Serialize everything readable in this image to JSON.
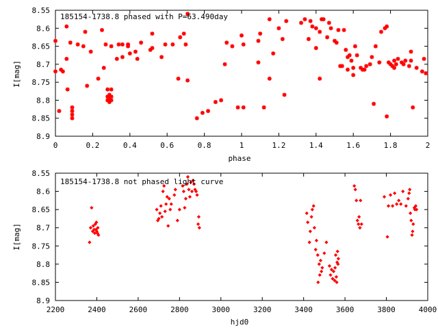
{
  "chart_data": [
    {
      "type": "scatter",
      "title": "185154-1738.8 phased with P=63.490day",
      "xlabel": "phase",
      "ylabel": "I[mag]",
      "xlim": [
        0,
        2
      ],
      "ylim": [
        8.9,
        8.55
      ],
      "y_inverted": true,
      "x_ticks": [
        "0",
        "0.2",
        "0.4",
        "0.6",
        "0.8",
        "1",
        "1.2",
        "1.4",
        "1.6",
        "1.8",
        "2"
      ],
      "y_ticks": [
        "8.55",
        "8.6",
        "8.65",
        "8.7",
        "8.75",
        "8.8",
        "8.85",
        "8.9"
      ],
      "marker": "star",
      "color": "#ff0000",
      "series": [
        {
          "points": [
            [
              0.0,
              8.635
            ],
            [
              0.0,
              8.72
            ],
            [
              0.02,
              8.83
            ],
            [
              0.03,
              8.715
            ],
            [
              0.04,
              8.72
            ],
            [
              0.06,
              8.595
            ],
            [
              0.06,
              8.685
            ],
            [
              0.065,
              8.77
            ],
            [
              0.08,
              8.64
            ],
            [
              0.09,
              8.82
            ],
            [
              0.09,
              8.83
            ],
            [
              0.09,
              8.84
            ],
            [
              0.09,
              8.85
            ],
            [
              0.12,
              8.645
            ],
            [
              0.15,
              8.65
            ],
            [
              0.16,
              8.61
            ],
            [
              0.17,
              8.76
            ],
            [
              0.19,
              8.665
            ],
            [
              0.23,
              8.74
            ],
            [
              0.25,
              8.605
            ],
            [
              0.26,
              8.71
            ],
            [
              0.27,
              8.645
            ],
            [
              0.28,
              8.77
            ],
            [
              0.28,
              8.79
            ],
            [
              0.28,
              8.8
            ],
            [
              0.29,
              8.785
            ],
            [
              0.29,
              8.795
            ],
            [
              0.29,
              8.805
            ],
            [
              0.3,
              8.77
            ],
            [
              0.3,
              8.79
            ],
            [
              0.3,
              8.8
            ],
            [
              0.3,
              8.65
            ],
            [
              0.33,
              8.685
            ],
            [
              0.34,
              8.645
            ],
            [
              0.36,
              8.68
            ],
            [
              0.36,
              8.645
            ],
            [
              0.39,
              8.645
            ],
            [
              0.39,
              8.65
            ],
            [
              0.4,
              8.67
            ],
            [
              0.43,
              8.665
            ],
            [
              0.44,
              8.685
            ],
            [
              0.46,
              8.64
            ],
            [
              0.51,
              8.66
            ],
            [
              0.52,
              8.655
            ],
            [
              0.52,
              8.615
            ],
            [
              0.57,
              8.68
            ],
            [
              0.59,
              8.645
            ],
            [
              0.63,
              8.645
            ],
            [
              0.66,
              8.74
            ],
            [
              0.67,
              8.625
            ],
            [
              0.69,
              8.615
            ],
            [
              0.7,
              8.645
            ],
            [
              0.71,
              8.745
            ],
            [
              0.71,
              8.56
            ],
            [
              0.76,
              8.85
            ],
            [
              0.79,
              8.835
            ],
            [
              0.82,
              8.83
            ],
            [
              0.86,
              8.805
            ],
            [
              0.89,
              8.8
            ],
            [
              0.91,
              8.7
            ],
            [
              0.92,
              8.64
            ],
            [
              0.95,
              8.65
            ],
            [
              0.98,
              8.82
            ],
            [
              1.0,
              8.62
            ],
            [
              1.01,
              8.82
            ],
            [
              1.01,
              8.645
            ],
            [
              1.09,
              8.695
            ],
            [
              1.09,
              8.635
            ],
            [
              1.1,
              8.615
            ],
            [
              1.12,
              8.82
            ],
            [
              1.15,
              8.575
            ],
            [
              1.15,
              8.74
            ],
            [
              1.17,
              8.67
            ],
            [
              1.2,
              8.6
            ],
            [
              1.22,
              8.63
            ],
            [
              1.23,
              8.785
            ],
            [
              1.24,
              8.58
            ],
            [
              1.32,
              8.585
            ],
            [
              1.34,
              8.575
            ],
            [
              1.36,
              8.63
            ],
            [
              1.37,
              8.58
            ],
            [
              1.38,
              8.595
            ],
            [
              1.4,
              8.655
            ],
            [
              1.4,
              8.6
            ],
            [
              1.42,
              8.74
            ],
            [
              1.42,
              8.61
            ],
            [
              1.43,
              8.575
            ],
            [
              1.44,
              8.575
            ],
            [
              1.46,
              8.625
            ],
            [
              1.47,
              8.585
            ],
            [
              1.48,
              8.6
            ],
            [
              1.5,
              8.635
            ],
            [
              1.51,
              8.64
            ],
            [
              1.52,
              8.605
            ],
            [
              1.53,
              8.705
            ],
            [
              1.54,
              8.705
            ],
            [
              1.55,
              8.605
            ],
            [
              1.56,
              8.66
            ],
            [
              1.57,
              8.715
            ],
            [
              1.57,
              8.68
            ],
            [
              1.58,
              8.675
            ],
            [
              1.59,
              8.69
            ],
            [
              1.6,
              8.71
            ],
            [
              1.6,
              8.73
            ],
            [
              1.61,
              8.65
            ],
            [
              1.62,
              8.675
            ],
            [
              1.64,
              8.71
            ],
            [
              1.65,
              8.715
            ],
            [
              1.66,
              8.715
            ],
            [
              1.67,
              8.705
            ],
            [
              1.69,
              8.7
            ],
            [
              1.7,
              8.68
            ],
            [
              1.71,
              8.81
            ],
            [
              1.72,
              8.65
            ],
            [
              1.74,
              8.695
            ],
            [
              1.75,
              8.61
            ],
            [
              1.77,
              8.6
            ],
            [
              1.78,
              8.595
            ],
            [
              1.78,
              8.845
            ],
            [
              1.79,
              8.695
            ],
            [
              1.8,
              8.7
            ],
            [
              1.81,
              8.705
            ],
            [
              1.82,
              8.71
            ],
            [
              1.82,
              8.69
            ],
            [
              1.83,
              8.7
            ],
            [
              1.84,
              8.685
            ],
            [
              1.86,
              8.695
            ],
            [
              1.87,
              8.7
            ],
            [
              1.88,
              8.69
            ],
            [
              1.9,
              8.705
            ],
            [
              1.91,
              8.665
            ],
            [
              1.91,
              8.69
            ],
            [
              1.92,
              8.82
            ],
            [
              1.94,
              8.71
            ],
            [
              1.97,
              8.72
            ],
            [
              1.98,
              8.685
            ],
            [
              1.99,
              8.725
            ]
          ]
        }
      ]
    },
    {
      "type": "scatter",
      "title": "185154-1738.8 not phased light curve",
      "xlabel": "hjd0",
      "ylabel": "I[mag]",
      "xlim": [
        2200,
        4000
      ],
      "ylim": [
        8.9,
        8.55
      ],
      "y_inverted": true,
      "x_ticks": [
        "2200",
        "2400",
        "2600",
        "2800",
        "3000",
        "3200",
        "3400",
        "3600",
        "3800",
        "4000"
      ],
      "y_ticks": [
        "8.55",
        "8.6",
        "8.65",
        "8.7",
        "8.75",
        "8.8",
        "8.85",
        "8.9"
      ],
      "marker": "diamond",
      "color": "#ff0000",
      "series": [
        {
          "points": [
            [
              2365,
              8.74
            ],
            [
              2370,
              8.7
            ],
            [
              2375,
              8.645
            ],
            [
              2380,
              8.71
            ],
            [
              2383,
              8.695
            ],
            [
              2387,
              8.705
            ],
            [
              2390,
              8.715
            ],
            [
              2393,
              8.69
            ],
            [
              2396,
              8.705
            ],
            [
              2398,
              8.685
            ],
            [
              2400,
              8.71
            ],
            [
              2403,
              8.715
            ],
            [
              2405,
              8.7
            ],
            [
              2408,
              8.72
            ],
            [
              2690,
              8.65
            ],
            [
              2695,
              8.68
            ],
            [
              2700,
              8.675
            ],
            [
              2705,
              8.66
            ],
            [
              2710,
              8.64
            ],
            [
              2715,
              8.67
            ],
            [
              2720,
              8.6
            ],
            [
              2725,
              8.585
            ],
            [
              2730,
              8.655
            ],
            [
              2735,
              8.635
            ],
            [
              2740,
              8.615
            ],
            [
              2745,
              8.695
            ],
            [
              2750,
              8.62
            ],
            [
              2755,
              8.65
            ],
            [
              2760,
              8.635
            ],
            [
              2775,
              8.61
            ],
            [
              2780,
              8.595
            ],
            [
              2790,
              8.68
            ],
            [
              2800,
              8.65
            ],
            [
              2815,
              8.585
            ],
            [
              2820,
              8.6
            ],
            [
              2825,
              8.645
            ],
            [
              2830,
              8.62
            ],
            [
              2835,
              8.58
            ],
            [
              2840,
              8.56
            ],
            [
              2845,
              8.595
            ],
            [
              2850,
              8.615
            ],
            [
              2855,
              8.575
            ],
            [
              2860,
              8.6
            ],
            [
              2865,
              8.57
            ],
            [
              2870,
              8.58
            ],
            [
              2875,
              8.595
            ],
            [
              2880,
              8.6
            ],
            [
              2885,
              8.61
            ],
            [
              2890,
              8.69
            ],
            [
              2893,
              8.67
            ],
            [
              2896,
              8.7
            ],
            [
              3415,
              8.66
            ],
            [
              3420,
              8.685
            ],
            [
              3428,
              8.74
            ],
            [
              3432,
              8.71
            ],
            [
              3438,
              8.67
            ],
            [
              3442,
              8.65
            ],
            [
              3448,
              8.64
            ],
            [
              3452,
              8.7
            ],
            [
              3458,
              8.76
            ],
            [
              3462,
              8.735
            ],
            [
              3468,
              8.775
            ],
            [
              3470,
              8.85
            ],
            [
              3475,
              8.8
            ],
            [
              3478,
              8.83
            ],
            [
              3482,
              8.79
            ],
            [
              3486,
              8.82
            ],
            [
              3490,
              8.81
            ],
            [
              3500,
              8.77
            ],
            [
              3510,
              8.74
            ],
            [
              3525,
              8.805
            ],
            [
              3530,
              8.83
            ],
            [
              3535,
              8.815
            ],
            [
              3540,
              8.84
            ],
            [
              3545,
              8.82
            ],
            [
              3550,
              8.845
            ],
            [
              3552,
              8.81
            ],
            [
              3555,
              8.775
            ],
            [
              3558,
              8.835
            ],
            [
              3560,
              8.85
            ],
            [
              3562,
              8.795
            ],
            [
              3564,
              8.765
            ],
            [
              3566,
              8.8
            ],
            [
              3568,
              8.785
            ],
            [
              3645,
              8.585
            ],
            [
              3650,
              8.595
            ],
            [
              3655,
              8.625
            ],
            [
              3660,
              8.68
            ],
            [
              3665,
              8.69
            ],
            [
              3668,
              8.67
            ],
            [
              3672,
              8.7
            ],
            [
              3675,
              8.625
            ],
            [
              3680,
              8.69
            ],
            [
              3790,
              8.615
            ],
            [
              3805,
              8.725
            ],
            [
              3810,
              8.64
            ],
            [
              3820,
              8.61
            ],
            [
              3830,
              8.64
            ],
            [
              3840,
              8.605
            ],
            [
              3850,
              8.635
            ],
            [
              3860,
              8.625
            ],
            [
              3870,
              8.635
            ],
            [
              3880,
              8.6
            ],
            [
              3895,
              8.64
            ],
            [
              3905,
              8.62
            ],
            [
              3910,
              8.605
            ],
            [
              3913,
              8.595
            ],
            [
              3916,
              8.66
            ],
            [
              3920,
              8.68
            ],
            [
              3924,
              8.72
            ],
            [
              3927,
              8.71
            ],
            [
              3930,
              8.69
            ],
            [
              3935,
              8.645
            ],
            [
              3938,
              8.65
            ],
            [
              3942,
              8.64
            ],
            [
              3946,
              8.65
            ]
          ]
        }
      ]
    }
  ]
}
